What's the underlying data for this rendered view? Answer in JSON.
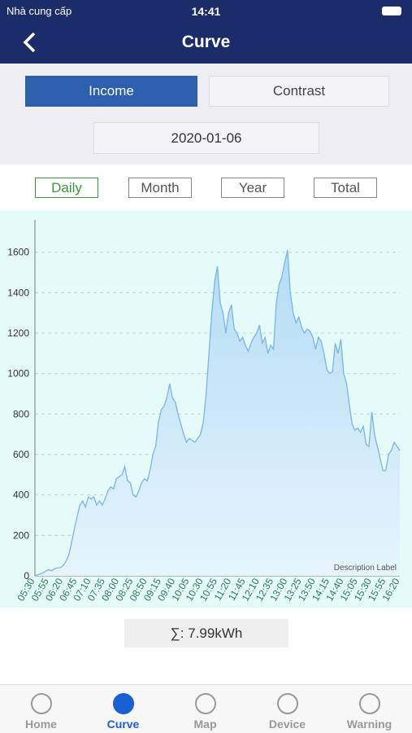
{
  "status_bar": {
    "carrier": "Nhà cung cấp",
    "time": "14:41"
  },
  "nav": {
    "title": "Curve"
  },
  "tabs": [
    "Income",
    "Contrast"
  ],
  "date": "2020-01-06",
  "periods": [
    "Daily",
    "Month",
    "Year",
    "Total"
  ],
  "chart_data": {
    "type": "area",
    "description": "Description Label",
    "color": "#7db4e6",
    "categories": [
      "05:30",
      null,
      null,
      null,
      null,
      "05:55",
      null,
      null,
      null,
      null,
      "06:20",
      null,
      null,
      null,
      null,
      "06:45",
      null,
      null,
      null,
      null,
      "07:10",
      null,
      null,
      null,
      null,
      "07:35",
      null,
      null,
      null,
      null,
      "08:00",
      null,
      null,
      null,
      null,
      "08:25",
      null,
      null,
      null,
      null,
      "08:50",
      null,
      null,
      null,
      null,
      "09:15",
      null,
      null,
      null,
      null,
      "09:40",
      null,
      null,
      null,
      null,
      "10:05",
      null,
      null,
      null,
      null,
      "10:30",
      null,
      null,
      null,
      null,
      "10:55",
      null,
      null,
      null,
      null,
      "11:20",
      null,
      null,
      null,
      null,
      "11:45",
      null,
      null,
      null,
      null,
      "12:10",
      null,
      null,
      null,
      null,
      "12:35",
      null,
      null,
      null,
      null,
      "13:00",
      null,
      null,
      null,
      null,
      "13:25",
      null,
      null,
      null,
      null,
      "13:50",
      null,
      null,
      null,
      null,
      "14:15",
      null,
      null,
      null,
      null,
      "14:40",
      null,
      null,
      null,
      null,
      "15:05",
      null,
      null,
      null,
      null,
      "15:30",
      null,
      null,
      null,
      null,
      "15:55",
      null,
      null,
      null,
      null,
      "16:20"
    ],
    "values": [
      0,
      5,
      10,
      15,
      25,
      30,
      25,
      35,
      40,
      40,
      50,
      70,
      100,
      160,
      230,
      290,
      350,
      370,
      340,
      390,
      380,
      390,
      350,
      370,
      350,
      380,
      420,
      440,
      430,
      480,
      490,
      500,
      540,
      470,
      460,
      400,
      390,
      420,
      460,
      480,
      470,
      520,
      600,
      640,
      760,
      820,
      840,
      880,
      950,
      880,
      860,
      800,
      750,
      700,
      660,
      680,
      670,
      660,
      680,
      700,
      760,
      900,
      1100,
      1300,
      1450,
      1530,
      1350,
      1300,
      1200,
      1300,
      1340,
      1220,
      1200,
      1160,
      1180,
      1140,
      1110,
      1150,
      1180,
      1200,
      1240,
      1150,
      1180,
      1100,
      1140,
      1120,
      1350,
      1440,
      1480,
      1550,
      1610,
      1400,
      1300,
      1250,
      1280,
      1230,
      1200,
      1220,
      1210,
      1180,
      1120,
      1180,
      1160,
      1100,
      1020,
      1000,
      1010,
      1150,
      1100,
      1170,
      1000,
      950,
      850,
      750,
      720,
      730,
      710,
      740,
      650,
      640,
      810,
      700,
      640,
      580,
      520,
      520,
      600,
      620,
      660,
      640,
      620
    ],
    "ylim": [
      0,
      1760
    ],
    "yticks": [
      0,
      200,
      400,
      600,
      800,
      1000,
      1200,
      1400,
      1600
    ],
    "grid": true
  },
  "summary": "∑:  7.99kWh",
  "tab_bar": [
    "Home",
    "Curve",
    "Map",
    "Device",
    "Warning"
  ]
}
